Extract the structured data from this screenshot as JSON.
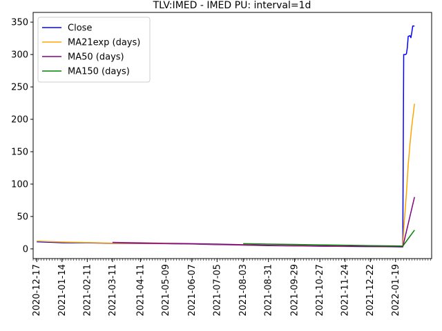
{
  "chart_data": {
    "type": "line",
    "title": "TLV:IMED - IMED PU: interval=1d",
    "xlabel": "",
    "ylabel": "",
    "x_axis": {
      "type": "date",
      "min": "2020-12-13",
      "max": "2022-02-28"
    },
    "ylim": [
      -15,
      365
    ],
    "grid": false,
    "legend_placement": "top-left",
    "yticks": [
      0,
      50,
      100,
      150,
      200,
      250,
      300,
      350
    ],
    "xticks": [
      "2020-12-17",
      "2021-01-14",
      "2021-02-11",
      "2021-03-11",
      "2021-04-11",
      "2021-05-09",
      "2021-06-07",
      "2021-07-05",
      "2021-08-03",
      "2021-08-31",
      "2021-09-29",
      "2021-10-27",
      "2021-11-24",
      "2021-12-22",
      "2022-01-19"
    ],
    "series": [
      {
        "name": "Close",
        "color": "#0000ff",
        "points": [
          [
            "2020-12-17",
            11
          ],
          [
            "2021-01-05",
            10
          ],
          [
            "2021-01-14",
            9.5
          ],
          [
            "2021-02-11",
            9.3
          ],
          [
            "2021-03-11",
            8.5
          ],
          [
            "2021-04-11",
            8.2
          ],
          [
            "2021-05-09",
            8.0
          ],
          [
            "2021-06-07",
            7.5
          ],
          [
            "2021-07-05",
            6.5
          ],
          [
            "2021-08-03",
            5.8
          ],
          [
            "2021-08-31",
            5.0
          ],
          [
            "2021-09-29",
            4.6
          ],
          [
            "2021-10-27",
            4.2
          ],
          [
            "2021-11-24",
            3.8
          ],
          [
            "2021-12-22",
            3.5
          ],
          [
            "2022-01-19",
            3.2
          ],
          [
            "2022-01-27",
            3.0
          ],
          [
            "2022-01-28",
            300
          ],
          [
            "2022-01-30",
            300
          ],
          [
            "2022-01-31",
            301
          ],
          [
            "2022-02-01",
            310
          ],
          [
            "2022-02-02",
            328
          ],
          [
            "2022-02-04",
            329
          ],
          [
            "2022-02-05",
            326
          ],
          [
            "2022-02-06",
            334
          ],
          [
            "2022-02-07",
            344
          ],
          [
            "2022-02-09",
            344
          ]
        ]
      },
      {
        "name": "MA21exp (days)",
        "color": "#ffa500",
        "points": [
          [
            "2020-12-17",
            12
          ],
          [
            "2021-01-14",
            10.5
          ],
          [
            "2021-02-11",
            9.8
          ],
          [
            "2021-03-11",
            9.0
          ],
          [
            "2021-04-11",
            8.6
          ],
          [
            "2021-05-09",
            8.2
          ],
          [
            "2021-06-07",
            7.7
          ],
          [
            "2021-07-05",
            6.9
          ],
          [
            "2021-08-03",
            6.0
          ],
          [
            "2021-08-31",
            5.2
          ],
          [
            "2021-09-29",
            4.7
          ],
          [
            "2021-10-27",
            4.3
          ],
          [
            "2021-11-24",
            3.9
          ],
          [
            "2021-12-22",
            3.6
          ],
          [
            "2022-01-19",
            3.3
          ],
          [
            "2022-01-27",
            3.1
          ],
          [
            "2022-01-28",
            30
          ],
          [
            "2022-01-31",
            85
          ],
          [
            "2022-02-02",
            130
          ],
          [
            "2022-02-04",
            162
          ],
          [
            "2022-02-06",
            190
          ],
          [
            "2022-02-09",
            224
          ]
        ]
      },
      {
        "name": "MA50 (days)",
        "color": "#800080",
        "points": [
          [
            "2021-03-11",
            10
          ],
          [
            "2021-04-11",
            9.2
          ],
          [
            "2021-05-09",
            8.6
          ],
          [
            "2021-06-07",
            8.0
          ],
          [
            "2021-07-05",
            7.4
          ],
          [
            "2021-08-03",
            6.4
          ],
          [
            "2021-08-31",
            5.5
          ],
          [
            "2021-09-29",
            4.9
          ],
          [
            "2021-10-27",
            4.4
          ],
          [
            "2021-11-24",
            4.0
          ],
          [
            "2021-12-22",
            3.7
          ],
          [
            "2022-01-19",
            3.4
          ],
          [
            "2022-01-27",
            3.3
          ],
          [
            "2022-02-09",
            80
          ]
        ]
      },
      {
        "name": "MA150 (days)",
        "color": "#008000",
        "points": [
          [
            "2021-08-03",
            8.0
          ],
          [
            "2021-08-31",
            7.4
          ],
          [
            "2021-09-29",
            6.8
          ],
          [
            "2021-10-27",
            6.2
          ],
          [
            "2021-11-24",
            5.6
          ],
          [
            "2021-12-22",
            5.0
          ],
          [
            "2022-01-19",
            4.5
          ],
          [
            "2022-01-27",
            4.3
          ],
          [
            "2022-02-09",
            29
          ]
        ]
      }
    ]
  }
}
